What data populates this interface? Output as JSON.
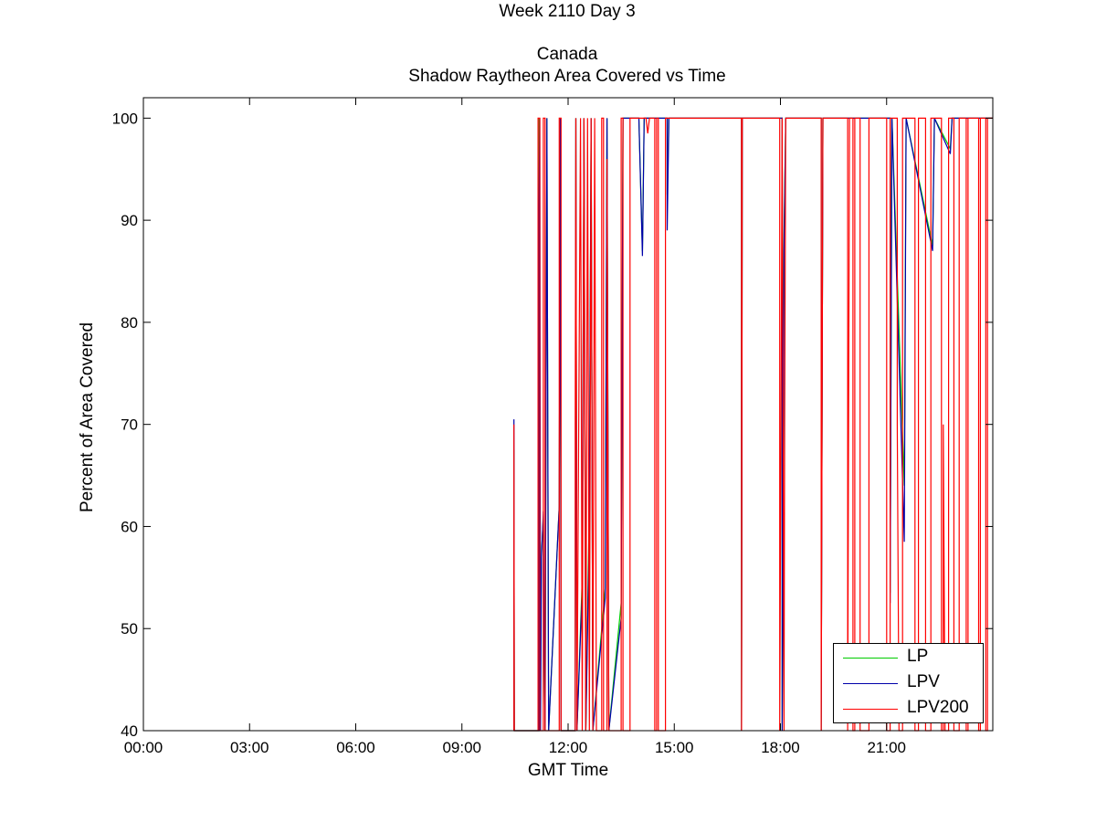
{
  "chart_data": {
    "type": "line",
    "title": "Week 2110 Day 3",
    "subtitle": "Canada",
    "subtitle2": "Shadow Raytheon Area Covered vs Time",
    "xlabel": "GMT Time",
    "ylabel": "Percent of Area Covered",
    "xlim": [
      0,
      24
    ],
    "ylim": [
      40,
      102
    ],
    "xticks": [
      0,
      3,
      6,
      9,
      12,
      15,
      18,
      21
    ],
    "xtick_labels": [
      "00:00",
      "03:00",
      "06:00",
      "09:00",
      "12:00",
      "15:00",
      "18:00",
      "21:00"
    ],
    "yticks": [
      40,
      50,
      60,
      70,
      80,
      90,
      100
    ],
    "ytick_labels": [
      "40",
      "50",
      "60",
      "70",
      "80",
      "90",
      "100"
    ],
    "grid": false,
    "legend_position": "bottom-right",
    "series": [
      {
        "name": "LP",
        "color": "#00cc00",
        "points": [
          [
            10.47,
            40
          ],
          [
            10.47,
            67.5
          ],
          [
            10.48,
            40
          ],
          [
            11.18,
            40
          ],
          [
            11.18,
            100
          ],
          [
            11.2,
            40
          ],
          [
            11.25,
            57.5
          ],
          [
            11.3,
            61
          ],
          [
            11.35,
            40
          ],
          [
            11.4,
            100
          ],
          [
            11.45,
            40
          ],
          [
            11.75,
            62
          ],
          [
            11.78,
            100
          ],
          [
            11.8,
            40
          ],
          [
            12.2,
            40
          ],
          [
            12.22,
            100
          ],
          [
            12.25,
            40
          ],
          [
            12.4,
            55
          ],
          [
            12.45,
            100
          ],
          [
            12.5,
            40
          ],
          [
            12.6,
            62.5
          ],
          [
            12.65,
            100
          ],
          [
            12.7,
            40
          ],
          [
            13.05,
            54
          ],
          [
            13.1,
            100
          ],
          [
            13.15,
            40
          ],
          [
            13.5,
            52.5
          ],
          [
            13.55,
            100
          ],
          [
            14.0,
            100
          ],
          [
            14.1,
            87
          ],
          [
            14.15,
            100
          ],
          [
            14.8,
            100
          ],
          [
            14.8,
            92.5
          ],
          [
            14.85,
            100
          ],
          [
            16.9,
            100
          ],
          [
            16.9,
            40
          ],
          [
            16.92,
            100
          ],
          [
            18.05,
            100
          ],
          [
            18.05,
            40
          ],
          [
            18.1,
            88.5
          ],
          [
            18.15,
            100
          ],
          [
            19.15,
            100
          ],
          [
            19.15,
            40
          ],
          [
            19.2,
            100
          ],
          [
            21.1,
            100
          ],
          [
            21.1,
            53.5
          ],
          [
            21.15,
            100
          ],
          [
            21.5,
            64
          ],
          [
            21.55,
            100
          ],
          [
            22.3,
            87.5
          ],
          [
            22.35,
            100
          ],
          [
            22.8,
            97
          ],
          [
            22.85,
            100
          ],
          [
            24,
            100
          ]
        ]
      },
      {
        "name": "LPV",
        "color": "#0000aa",
        "points": [
          [
            10.47,
            40
          ],
          [
            10.47,
            70.5
          ],
          [
            10.48,
            40
          ],
          [
            11.18,
            40
          ],
          [
            11.18,
            91.5
          ],
          [
            11.2,
            100
          ],
          [
            11.22,
            40
          ],
          [
            11.25,
            57
          ],
          [
            11.3,
            61.5
          ],
          [
            11.35,
            40
          ],
          [
            11.4,
            100
          ],
          [
            11.45,
            40
          ],
          [
            11.75,
            62
          ],
          [
            11.78,
            100
          ],
          [
            11.8,
            40
          ],
          [
            12.2,
            40
          ],
          [
            12.22,
            100
          ],
          [
            12.25,
            40
          ],
          [
            12.4,
            54
          ],
          [
            12.45,
            100
          ],
          [
            12.5,
            40
          ],
          [
            12.6,
            60
          ],
          [
            12.65,
            100
          ],
          [
            12.7,
            40
          ],
          [
            13.05,
            53
          ],
          [
            13.1,
            100
          ],
          [
            13.15,
            40
          ],
          [
            13.5,
            51
          ],
          [
            13.55,
            100
          ],
          [
            14.0,
            100
          ],
          [
            14.1,
            86.5
          ],
          [
            14.15,
            100
          ],
          [
            14.8,
            100
          ],
          [
            14.8,
            89
          ],
          [
            14.85,
            100
          ],
          [
            16.9,
            100
          ],
          [
            16.9,
            40
          ],
          [
            16.92,
            100
          ],
          [
            18.05,
            100
          ],
          [
            18.05,
            40
          ],
          [
            18.1,
            87
          ],
          [
            18.15,
            100
          ],
          [
            19.15,
            100
          ],
          [
            19.15,
            40
          ],
          [
            19.2,
            100
          ],
          [
            21.1,
            100
          ],
          [
            21.1,
            52.5
          ],
          [
            21.15,
            100
          ],
          [
            21.5,
            58.5
          ],
          [
            21.55,
            100
          ],
          [
            22.3,
            87
          ],
          [
            22.35,
            100
          ],
          [
            22.8,
            96.5
          ],
          [
            22.85,
            100
          ],
          [
            24,
            100
          ]
        ]
      },
      {
        "name": "LPV200",
        "color": "#ff0000",
        "points": [
          [
            10.47,
            40
          ],
          [
            10.47,
            70
          ],
          [
            10.48,
            40
          ],
          [
            11.15,
            40
          ],
          [
            11.15,
            100
          ],
          [
            11.2,
            100
          ],
          [
            11.2,
            40
          ],
          [
            11.3,
            40
          ],
          [
            11.3,
            100
          ],
          [
            11.35,
            100
          ],
          [
            11.35,
            40
          ],
          [
            11.75,
            40
          ],
          [
            11.75,
            100
          ],
          [
            11.8,
            100
          ],
          [
            11.8,
            40
          ],
          [
            12.2,
            40
          ],
          [
            12.2,
            70
          ],
          [
            12.22,
            100
          ],
          [
            12.25,
            40
          ],
          [
            12.35,
            100
          ],
          [
            12.4,
            40
          ],
          [
            12.45,
            100
          ],
          [
            12.5,
            40
          ],
          [
            12.55,
            100
          ],
          [
            12.6,
            40
          ],
          [
            12.65,
            100
          ],
          [
            12.7,
            40
          ],
          [
            12.75,
            100
          ],
          [
            12.8,
            40
          ],
          [
            12.95,
            40
          ],
          [
            12.95,
            100
          ],
          [
            13.0,
            100
          ],
          [
            13.0,
            40
          ],
          [
            13.1,
            40
          ],
          [
            13.1,
            96
          ],
          [
            13.15,
            40
          ],
          [
            13.5,
            40
          ],
          [
            13.5,
            100
          ],
          [
            13.55,
            100
          ],
          [
            13.55,
            40
          ],
          [
            13.75,
            40
          ],
          [
            13.75,
            100
          ],
          [
            14.2,
            100
          ],
          [
            14.25,
            98.5
          ],
          [
            14.3,
            100
          ],
          [
            14.45,
            100
          ],
          [
            14.45,
            40
          ],
          [
            14.5,
            40
          ],
          [
            14.5,
            100
          ],
          [
            14.55,
            100
          ],
          [
            14.55,
            40
          ],
          [
            14.75,
            40
          ],
          [
            14.75,
            100
          ],
          [
            16.9,
            100
          ],
          [
            16.9,
            40
          ],
          [
            16.92,
            100
          ],
          [
            17.98,
            100
          ],
          [
            17.98,
            40
          ],
          [
            18.05,
            100
          ],
          [
            18.1,
            40
          ],
          [
            18.12,
            70
          ],
          [
            18.15,
            100
          ],
          [
            19.15,
            100
          ],
          [
            19.15,
            40
          ],
          [
            19.2,
            100
          ],
          [
            19.9,
            100
          ],
          [
            19.9,
            40
          ],
          [
            19.95,
            100
          ],
          [
            20.05,
            100
          ],
          [
            20.05,
            40
          ],
          [
            20.1,
            40
          ],
          [
            20.1,
            100
          ],
          [
            20.25,
            100
          ],
          [
            20.25,
            40
          ],
          [
            20.5,
            40
          ],
          [
            20.5,
            100
          ],
          [
            21.0,
            100
          ],
          [
            21.0,
            40
          ],
          [
            21.1,
            40
          ],
          [
            21.1,
            100
          ],
          [
            21.3,
            100
          ],
          [
            21.3,
            70
          ],
          [
            21.35,
            40
          ],
          [
            21.45,
            40
          ],
          [
            21.45,
            100
          ],
          [
            21.8,
            100
          ],
          [
            21.8,
            40
          ],
          [
            21.9,
            40
          ],
          [
            21.9,
            100
          ],
          [
            22.1,
            100
          ],
          [
            22.1,
            40
          ],
          [
            22.25,
            40
          ],
          [
            22.25,
            100
          ],
          [
            22.55,
            100
          ],
          [
            22.55,
            40
          ],
          [
            22.6,
            40
          ],
          [
            22.6,
            70
          ],
          [
            22.65,
            40
          ],
          [
            22.75,
            40
          ],
          [
            22.75,
            100
          ],
          [
            22.9,
            100
          ],
          [
            22.9,
            40
          ],
          [
            23.05,
            40
          ],
          [
            23.05,
            100
          ],
          [
            23.25,
            100
          ],
          [
            23.25,
            40
          ],
          [
            23.3,
            40
          ],
          [
            23.3,
            100
          ],
          [
            23.6,
            100
          ],
          [
            23.6,
            40
          ],
          [
            23.65,
            40
          ],
          [
            23.65,
            100
          ],
          [
            23.8,
            100
          ],
          [
            23.8,
            40
          ],
          [
            23.85,
            40
          ],
          [
            23.85,
            100
          ],
          [
            24,
            100
          ]
        ]
      }
    ]
  }
}
